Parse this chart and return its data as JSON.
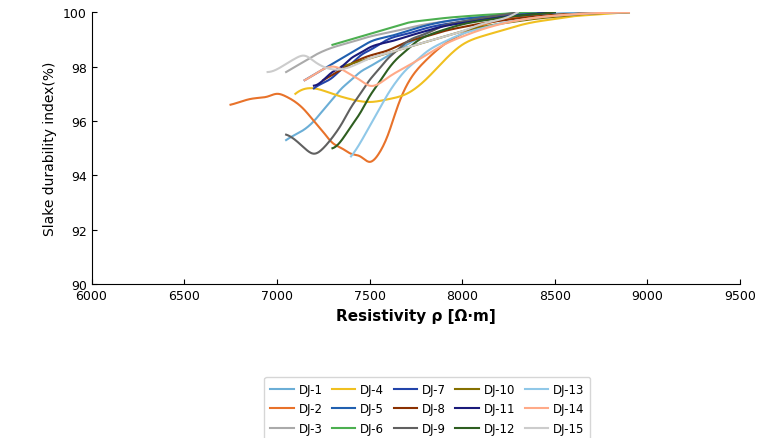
{
  "xlabel": "Resistivity ρ [Ω·m]",
  "ylabel": "Slake durability index(%)",
  "xlim": [
    6000,
    9500
  ],
  "ylim": [
    90.0,
    100.0
  ],
  "xticks": [
    6000,
    6500,
    7000,
    7500,
    8000,
    8500,
    9000,
    9500
  ],
  "yticks": [
    90.0,
    92.0,
    94.0,
    96.0,
    98.0,
    100.0
  ],
  "series": {
    "DJ-1": {
      "color": "#6BAED6",
      "data_x": [
        7050,
        7100,
        7150,
        7200,
        7250,
        7300,
        7350,
        7400,
        7450,
        7500,
        7550,
        7600,
        7650,
        7700,
        7750,
        7800,
        7850,
        7900,
        8000,
        8100,
        8200,
        8300,
        8400,
        8500,
        8600,
        8700,
        8800,
        8900
      ],
      "data_y": [
        95.3,
        95.5,
        95.7,
        96.0,
        96.4,
        96.8,
        97.2,
        97.5,
        97.8,
        98.0,
        98.2,
        98.4,
        98.6,
        98.8,
        99.0,
        99.2,
        99.4,
        99.5,
        99.65,
        99.75,
        99.82,
        99.88,
        99.92,
        99.95,
        99.97,
        99.98,
        99.99,
        100.0
      ]
    },
    "DJ-2": {
      "color": "#E8722A",
      "data_x": [
        6750,
        6800,
        6850,
        6900,
        6950,
        7000,
        7050,
        7100,
        7150,
        7200,
        7250,
        7300,
        7350,
        7400,
        7450,
        7500,
        7550,
        7600,
        7650,
        7700,
        7800,
        7900,
        8000,
        8100,
        8200,
        8500,
        8700,
        8900
      ],
      "data_y": [
        96.6,
        96.7,
        96.8,
        96.85,
        96.9,
        97.0,
        96.9,
        96.7,
        96.4,
        96.0,
        95.6,
        95.2,
        95.0,
        94.8,
        94.7,
        94.5,
        94.8,
        95.5,
        96.5,
        97.3,
        98.2,
        98.8,
        99.2,
        99.5,
        99.7,
        99.9,
        99.97,
        100.0
      ]
    },
    "DJ-3": {
      "color": "#AAAAAA",
      "data_x": [
        7050,
        7100,
        7150,
        7200,
        7300,
        7400,
        7500,
        7600,
        7700,
        7800,
        7900,
        8000,
        8100,
        8200,
        8300
      ],
      "data_y": [
        97.8,
        98.0,
        98.2,
        98.4,
        98.7,
        98.9,
        99.1,
        99.25,
        99.4,
        99.55,
        99.65,
        99.75,
        99.82,
        99.9,
        100.0
      ]
    },
    "DJ-4": {
      "color": "#F0C020",
      "data_x": [
        7100,
        7200,
        7300,
        7400,
        7500,
        7600,
        7700,
        7800,
        7900,
        8000,
        8100,
        8200,
        8300,
        8400,
        8500,
        8600,
        8700,
        8800,
        8900
      ],
      "data_y": [
        97.0,
        97.2,
        97.0,
        96.8,
        96.7,
        96.8,
        97.0,
        97.5,
        98.2,
        98.8,
        99.1,
        99.3,
        99.5,
        99.65,
        99.75,
        99.85,
        99.9,
        99.95,
        100.0
      ]
    },
    "DJ-5": {
      "color": "#2060B0",
      "data_x": [
        7150,
        7200,
        7250,
        7300,
        7350,
        7400,
        7450,
        7500,
        7600,
        7700,
        7800,
        7900,
        8000,
        8100,
        8200,
        8300,
        8400,
        8500
      ],
      "data_y": [
        97.5,
        97.7,
        97.9,
        98.1,
        98.3,
        98.5,
        98.7,
        98.9,
        99.1,
        99.3,
        99.5,
        99.65,
        99.75,
        99.82,
        99.88,
        99.93,
        99.97,
        100.0
      ]
    },
    "DJ-6": {
      "color": "#4CAF50",
      "data_x": [
        7300,
        7350,
        7400,
        7450,
        7500,
        7550,
        7600,
        7650,
        7700,
        7800,
        7900,
        8000,
        8100,
        8200,
        8300,
        8400
      ],
      "data_y": [
        98.8,
        98.9,
        99.0,
        99.1,
        99.2,
        99.3,
        99.4,
        99.5,
        99.6,
        99.7,
        99.78,
        99.84,
        99.89,
        99.93,
        99.97,
        100.0
      ]
    },
    "DJ-7": {
      "color": "#2244AA",
      "data_x": [
        7200,
        7250,
        7300,
        7350,
        7400,
        7450,
        7500,
        7550,
        7600,
        7700,
        7800,
        7900,
        8000,
        8100,
        8200,
        8300,
        8400,
        8500
      ],
      "data_y": [
        97.2,
        97.4,
        97.6,
        97.9,
        98.1,
        98.4,
        98.6,
        98.8,
        99.0,
        99.2,
        99.4,
        99.55,
        99.65,
        99.75,
        99.83,
        99.9,
        99.95,
        100.0
      ]
    },
    "DJ-8": {
      "color": "#8B3000",
      "data_x": [
        7250,
        7300,
        7350,
        7400,
        7500,
        7600,
        7700,
        7800,
        7900,
        8000,
        8100,
        8200,
        8300,
        8400,
        8500,
        8600,
        8700,
        8800,
        8900
      ],
      "data_y": [
        97.5,
        97.7,
        97.9,
        98.1,
        98.4,
        98.6,
        98.9,
        99.1,
        99.3,
        99.45,
        99.58,
        99.68,
        99.77,
        99.84,
        99.9,
        99.93,
        99.96,
        99.98,
        100.0
      ]
    },
    "DJ-9": {
      "color": "#606060",
      "data_x": [
        7050,
        7100,
        7150,
        7200,
        7250,
        7300,
        7350,
        7400,
        7450,
        7500,
        7550,
        7600,
        7650,
        7700,
        7800,
        7900,
        8000,
        8100,
        8200,
        8300
      ],
      "data_y": [
        95.5,
        95.3,
        95.0,
        94.8,
        95.0,
        95.4,
        95.9,
        96.5,
        97.0,
        97.5,
        97.9,
        98.3,
        98.6,
        98.9,
        99.2,
        99.5,
        99.65,
        99.78,
        99.88,
        100.0
      ]
    },
    "DJ-10": {
      "color": "#857000",
      "data_x": [
        7350,
        7400,
        7450,
        7500,
        7600,
        7700,
        7800,
        7900,
        8000,
        8100,
        8200,
        8300,
        8400,
        8500,
        8600,
        8700,
        8800,
        8900
      ],
      "data_y": [
        98.0,
        98.1,
        98.2,
        98.3,
        98.5,
        98.7,
        98.9,
        99.1,
        99.3,
        99.45,
        99.57,
        99.67,
        99.76,
        99.83,
        99.9,
        99.95,
        99.98,
        100.0
      ]
    },
    "DJ-11": {
      "color": "#1A1A7A",
      "data_x": [
        7200,
        7250,
        7300,
        7350,
        7400,
        7450,
        7500,
        7600,
        7700,
        7800,
        7900,
        8000,
        8100,
        8200,
        8300,
        8400,
        8500
      ],
      "data_y": [
        97.3,
        97.5,
        97.8,
        98.0,
        98.3,
        98.5,
        98.7,
        98.9,
        99.1,
        99.3,
        99.48,
        99.6,
        99.7,
        99.8,
        99.87,
        99.93,
        100.0
      ]
    },
    "DJ-12": {
      "color": "#2E5E20",
      "data_x": [
        7300,
        7350,
        7400,
        7450,
        7500,
        7550,
        7600,
        7650,
        7700,
        7750,
        7800,
        7900,
        8000,
        8100,
        8200,
        8300,
        8400,
        8500
      ],
      "data_y": [
        95.0,
        95.3,
        95.8,
        96.3,
        96.9,
        97.4,
        97.9,
        98.3,
        98.6,
        98.9,
        99.1,
        99.35,
        99.55,
        99.68,
        99.78,
        99.87,
        99.93,
        100.0
      ]
    },
    "DJ-13": {
      "color": "#90C8E8",
      "data_x": [
        7400,
        7450,
        7500,
        7550,
        7600,
        7650,
        7700,
        7750,
        7800,
        7900,
        8000,
        8100,
        8200,
        8300,
        8400,
        8500,
        8600,
        8700,
        8800,
        8900
      ],
      "data_y": [
        94.7,
        95.2,
        95.8,
        96.4,
        97.0,
        97.5,
        97.9,
        98.2,
        98.5,
        98.9,
        99.2,
        99.4,
        99.58,
        99.7,
        99.8,
        99.87,
        99.92,
        99.96,
        99.98,
        100.0
      ]
    },
    "DJ-14": {
      "color": "#FFAA88",
      "data_x": [
        7150,
        7200,
        7250,
        7300,
        7350,
        7400,
        7450,
        7500,
        7600,
        7700,
        7800,
        7900,
        8000,
        8100,
        8200,
        8300,
        8400,
        8500,
        8600,
        8700,
        8800,
        8900
      ],
      "data_y": [
        97.5,
        97.7,
        97.9,
        98.0,
        97.9,
        97.7,
        97.5,
        97.3,
        97.6,
        98.0,
        98.4,
        98.8,
        99.1,
        99.35,
        99.55,
        99.7,
        99.8,
        99.87,
        99.92,
        99.96,
        99.98,
        100.0
      ]
    },
    "DJ-15": {
      "color": "#CCCCCC",
      "data_x": [
        6950,
        7000,
        7050,
        7100,
        7150,
        7200,
        7300,
        7400,
        7500,
        7600,
        7700,
        7800,
        7900,
        8000,
        8100,
        8200,
        8300
      ],
      "data_y": [
        97.8,
        97.9,
        98.1,
        98.3,
        98.4,
        98.2,
        97.9,
        98.0,
        98.3,
        98.5,
        98.7,
        98.9,
        99.1,
        99.3,
        99.55,
        99.72,
        100.0
      ]
    }
  }
}
